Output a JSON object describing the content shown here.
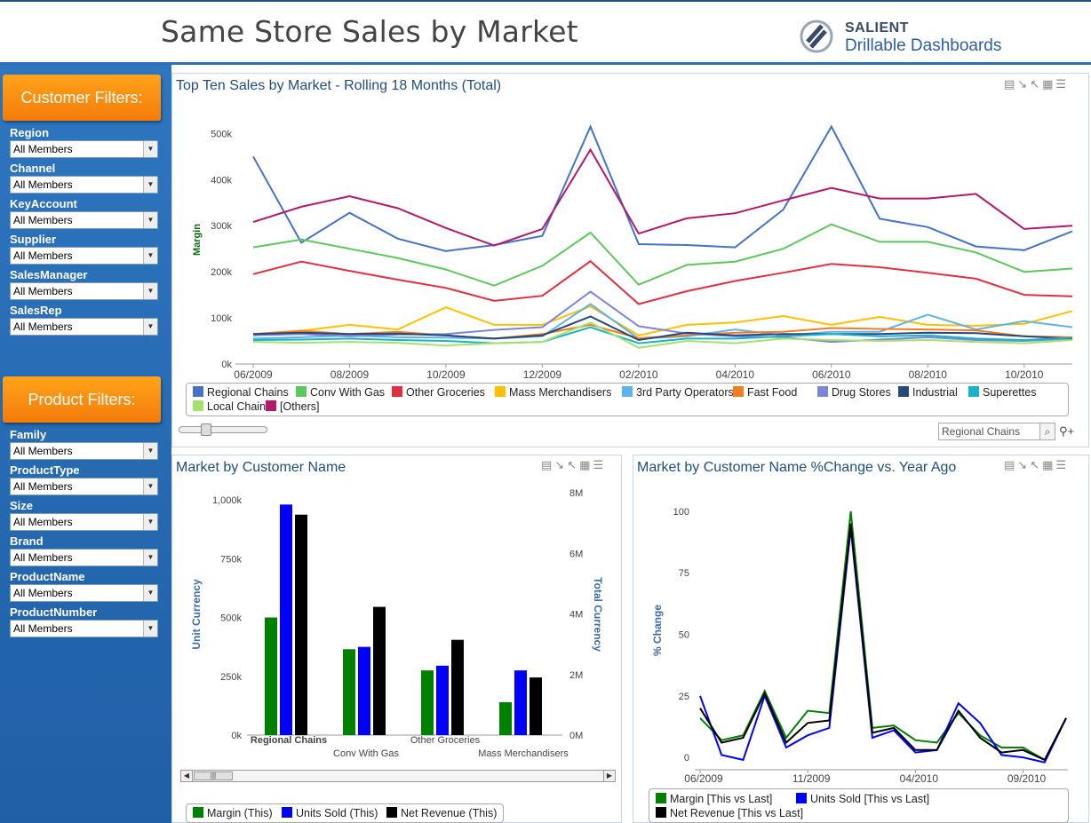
{
  "header": {
    "title": "Same Store Sales by Market",
    "logo_line1": "SALIENT",
    "logo_line2": "Drillable Dashboards"
  },
  "customer_filters": {
    "title": "Customer Filters:",
    "items": [
      {
        "label": "Region",
        "value": "All Members"
      },
      {
        "label": "Channel",
        "value": "All Members"
      },
      {
        "label": "KeyAccount",
        "value": "All Members"
      },
      {
        "label": "Supplier",
        "value": "All Members"
      },
      {
        "label": "SalesManager",
        "value": "All Members"
      },
      {
        "label": "SalesRep",
        "value": "All Members"
      }
    ]
  },
  "product_filters": {
    "title": "Product Filters:",
    "items": [
      {
        "label": "Family",
        "value": "All Members"
      },
      {
        "label": "ProductType",
        "value": "All Members"
      },
      {
        "label": "Size",
        "value": "All Members"
      },
      {
        "label": "Brand",
        "value": "All Members"
      },
      {
        "label": "ProductName",
        "value": "All Members"
      },
      {
        "label": "ProductNumber",
        "value": "All Members"
      }
    ]
  },
  "top_panel": {
    "title": "Top Ten Sales by Market - Rolling 18 Months (Total)",
    "search_value": "Regional Chains"
  },
  "left_panel": {
    "title": "Market by Customer Name"
  },
  "right_panel": {
    "title": "Market by Customer Name %Change vs. Year Ago"
  },
  "chart_data": [
    {
      "type": "line",
      "title": "Top Ten Sales by Market - Rolling 18 Months (Total)",
      "ylabel": "Margin",
      "ylim": [
        0,
        520000
      ],
      "yticks": [
        0,
        100000,
        200000,
        300000,
        400000,
        500000
      ],
      "ytick_labels": [
        "0k",
        "100k",
        "200k",
        "300k",
        "400k",
        "500k"
      ],
      "x_labels": [
        "06/2009",
        "08/2009",
        "10/2009",
        "12/2009",
        "02/2010",
        "04/2010",
        "06/2010",
        "08/2010",
        "10/2010"
      ],
      "x": [
        "06/2009",
        "07/2009",
        "08/2009",
        "09/2009",
        "10/2009",
        "11/2009",
        "12/2009",
        "01/2010",
        "02/2010",
        "03/2010",
        "04/2010",
        "05/2010",
        "06/2010",
        "07/2010",
        "08/2010",
        "09/2010",
        "10/2010",
        "11/2010"
      ],
      "legend_position": "bottom",
      "series": [
        {
          "name": "Regional Chains",
          "color": "#4472c4",
          "values": [
            450000,
            263000,
            328000,
            272000,
            245000,
            258000,
            278000,
            515000,
            260000,
            258000,
            253000,
            335000,
            515000,
            315000,
            297000,
            255000,
            247000,
            288000
          ]
        },
        {
          "name": "Conv With Gas",
          "color": "#5cc85c",
          "values": [
            253000,
            270000,
            250000,
            230000,
            205000,
            170000,
            213000,
            285000,
            172000,
            215000,
            222000,
            250000,
            303000,
            265000,
            265000,
            242000,
            200000,
            207000
          ]
        },
        {
          "name": "Other Groceries",
          "color": "#e03040",
          "values": [
            195000,
            222000,
            202000,
            183000,
            165000,
            137000,
            148000,
            223000,
            130000,
            158000,
            180000,
            198000,
            217000,
            210000,
            198000,
            185000,
            150000,
            147000
          ]
        },
        {
          "name": "Mass Merchandisers",
          "color": "#ffc000",
          "values": [
            65000,
            72000,
            85000,
            75000,
            123000,
            85000,
            85000,
            125000,
            62000,
            85000,
            90000,
            104000,
            85000,
            102000,
            85000,
            83000,
            87000,
            115000
          ]
        },
        {
          "name": "3rd Party Operators",
          "color": "#5fb3e8",
          "values": [
            55000,
            58000,
            62000,
            58000,
            57000,
            55000,
            60000,
            130000,
            55000,
            60000,
            75000,
            62000,
            70000,
            70000,
            107000,
            75000,
            93000,
            80000
          ]
        },
        {
          "name": "Fast Food",
          "color": "#f57c1f",
          "values": [
            65000,
            72000,
            65000,
            70000,
            62000,
            55000,
            65000,
            85000,
            56000,
            62000,
            68000,
            70000,
            78000,
            76000,
            75000,
            73000,
            60000,
            58000
          ]
        },
        {
          "name": "Drug Stores",
          "color": "#7b86d6",
          "values": [
            62000,
            65000,
            60000,
            64000,
            65000,
            74000,
            80000,
            157000,
            82000,
            66000,
            60000,
            58000,
            48000,
            53000,
            58000,
            52000,
            50000,
            55000
          ]
        },
        {
          "name": "Industrial",
          "color": "#27487a",
          "values": [
            65000,
            68000,
            65000,
            66000,
            62000,
            55000,
            62000,
            103000,
            52000,
            68000,
            62000,
            65000,
            65000,
            65000,
            68000,
            67000,
            60000,
            55000
          ]
        },
        {
          "name": "Superettes",
          "color": "#19b3c8",
          "values": [
            52000,
            53000,
            55000,
            52000,
            50000,
            45000,
            48000,
            80000,
            45000,
            55000,
            55000,
            60000,
            65000,
            60000,
            62000,
            55000,
            52000,
            57000
          ]
        },
        {
          "name": "Local Chains",
          "color": "#a6e06e",
          "values": [
            48000,
            46000,
            48000,
            46000,
            40000,
            45000,
            48000,
            90000,
            35000,
            50000,
            45000,
            55000,
            52000,
            50000,
            52000,
            48000,
            45000,
            52000
          ]
        },
        {
          "name": "[Others]",
          "color": "#b3186a",
          "values": [
            308000,
            341000,
            364000,
            338000,
            295000,
            257000,
            293000,
            465000,
            283000,
            316000,
            327000,
            355000,
            382000,
            359000,
            359000,
            369000,
            293000,
            300000
          ]
        }
      ]
    },
    {
      "type": "bar",
      "title": "Market by Customer Name",
      "ylabel": "Unit Currency",
      "y2label": "Total Currency",
      "ylim": [
        0,
        1000000
      ],
      "ytick_labels": [
        "0k",
        "250k",
        "500k",
        "750k",
        "1,000k"
      ],
      "y2tick_labels": [
        "0M",
        "2M",
        "4M",
        "6M",
        "8M"
      ],
      "categories": [
        "Regional Chains",
        "Conv With Gas",
        "Other Groceries",
        "Mass Merchandisers"
      ],
      "series": [
        {
          "name": "Margin (This)",
          "color": "#008000",
          "values": [
            500000,
            365000,
            275000,
            140000
          ]
        },
        {
          "name": "Units Sold (This)",
          "color": "#0000ff",
          "values": [
            980000,
            375000,
            295000,
            275000
          ]
        },
        {
          "name": "Net Revenue (This)",
          "color": "#000000",
          "values": [
            937000,
            545000,
            405000,
            245000
          ]
        }
      ],
      "legend_position": "bottom"
    },
    {
      "type": "line",
      "title": "Market by Customer Name %Change vs. Year Ago",
      "ylabel": "% Change",
      "ylim": [
        -5,
        105
      ],
      "ytick_labels": [
        "0",
        "25",
        "50",
        "75",
        "100"
      ],
      "x_labels": [
        "06/2009",
        "11/2009",
        "04/2010",
        "09/2010"
      ],
      "x": [
        "06/2009",
        "07/2009",
        "08/2009",
        "09/2009",
        "10/2009",
        "11/2009",
        "12/2009",
        "01/2010",
        "02/2010",
        "03/2010",
        "04/2010",
        "05/2010",
        "06/2010",
        "07/2010",
        "08/2010",
        "09/2010",
        "10/2010",
        "11/2010"
      ],
      "series": [
        {
          "name": "Margin [This vs Last]",
          "color": "#008000",
          "values": [
            16,
            7,
            9,
            27,
            8,
            19,
            18,
            100,
            12,
            13,
            7,
            6,
            18,
            9,
            4,
            4,
            -1,
            16
          ]
        },
        {
          "name": "Units Sold [This vs Last]",
          "color": "#0000ff",
          "values": [
            25,
            1,
            -1,
            25,
            4,
            9,
            12,
            93,
            8,
            11,
            2,
            3,
            22,
            14,
            1,
            0,
            -2,
            16
          ]
        },
        {
          "name": "Net Revenue [This vs Last]",
          "color": "#000000",
          "values": [
            20,
            6,
            8,
            26,
            6,
            14,
            15,
            95,
            10,
            12,
            3,
            3,
            19,
            8,
            2,
            3,
            -1,
            16
          ]
        }
      ],
      "legend_position": "bottom"
    }
  ]
}
